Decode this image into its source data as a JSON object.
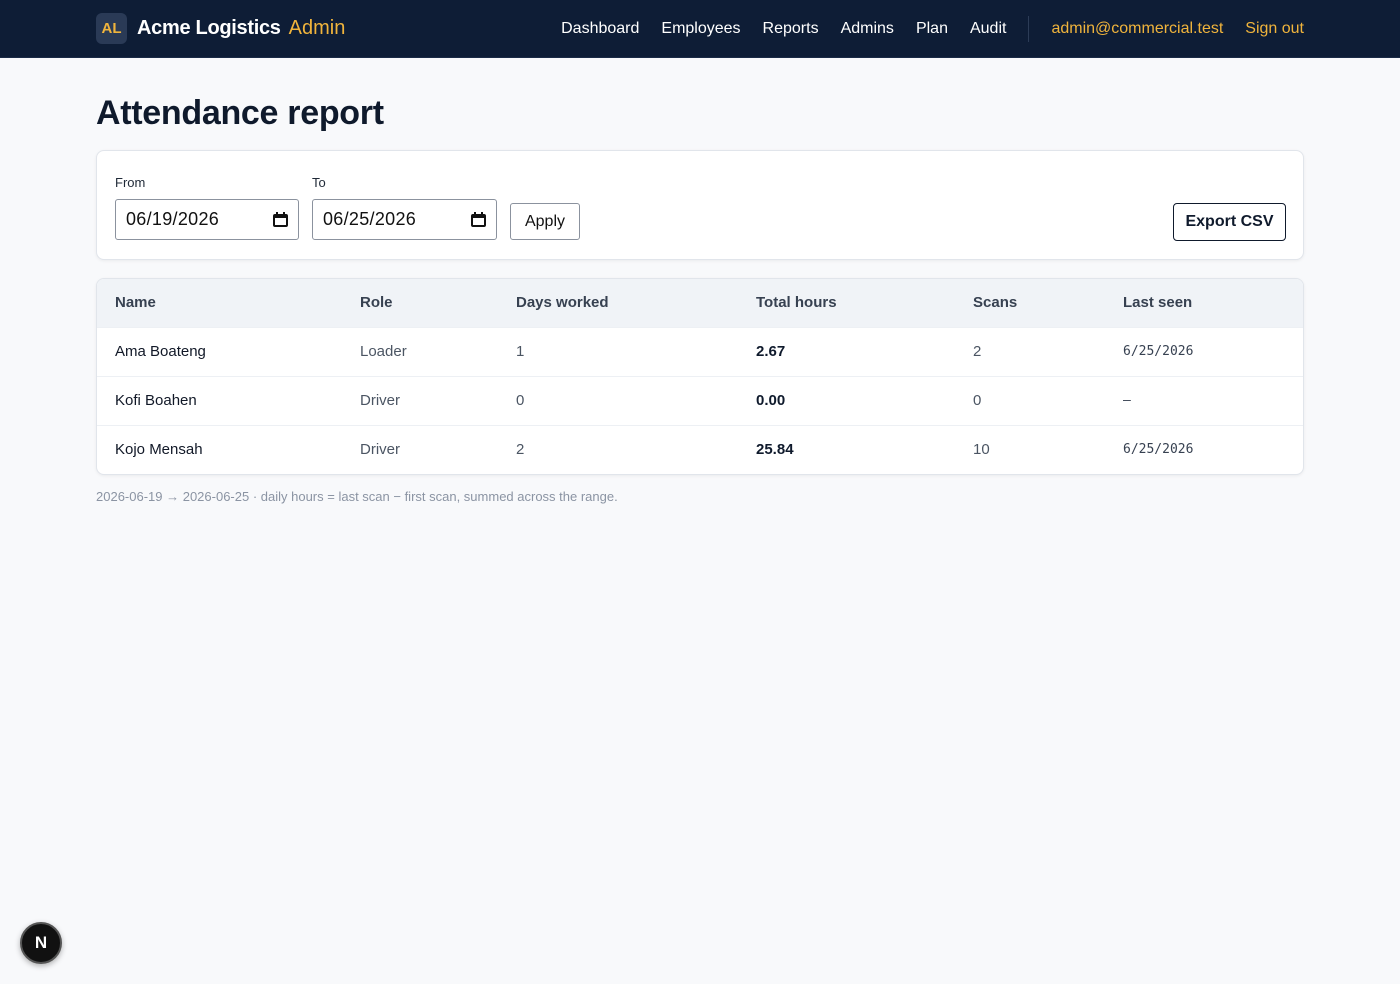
{
  "header": {
    "logo_initials": "AL",
    "brand_name": "Acme Logistics",
    "brand_suffix": "Admin",
    "nav": [
      "Dashboard",
      "Employees",
      "Reports",
      "Admins",
      "Plan",
      "Audit"
    ],
    "user_email": "admin@commercial.test",
    "sign_out": "Sign out"
  },
  "page": {
    "title": "Attendance report"
  },
  "filters": {
    "from_label": "From",
    "from_value": "06/19/2026",
    "to_label": "To",
    "to_value": "06/25/2026",
    "apply_label": "Apply",
    "export_label": "Export CSV"
  },
  "table": {
    "columns": [
      "Name",
      "Role",
      "Days worked",
      "Total hours",
      "Scans",
      "Last seen"
    ],
    "rows": [
      {
        "name": "Ama Boateng",
        "role": "Loader",
        "days": "1",
        "hours": "2.67",
        "scans": "2",
        "last_seen": "6/25/2026"
      },
      {
        "name": "Kofi Boahen",
        "role": "Driver",
        "days": "0",
        "hours": "0.00",
        "scans": "0",
        "last_seen": "–"
      },
      {
        "name": "Kojo Mensah",
        "role": "Driver",
        "days": "2",
        "hours": "25.84",
        "scans": "10",
        "last_seen": "6/25/2026"
      }
    ]
  },
  "footnote": "2026-06-19 → 2026-06-25 · daily hours = last scan − first scan, summed across the range.",
  "dev_badge": "N",
  "colors": {
    "header_bg": "#0e1d36",
    "accent": "#f0b43c",
    "page_bg": "#f8f9fb"
  }
}
